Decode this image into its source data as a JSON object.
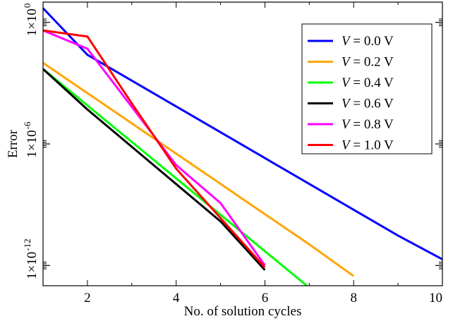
{
  "chart_data": {
    "type": "line",
    "title": "",
    "xlabel": "No. of solution cycles",
    "ylabel": "Error",
    "xlim": [
      1,
      10
    ],
    "ylim": [
      1e-13,
      10.0
    ],
    "yscale": "log",
    "grid": false,
    "legend_position": "top-right",
    "x_ticks": [
      {
        "value": 2,
        "label": "2"
      },
      {
        "value": 4,
        "label": "4"
      },
      {
        "value": 6,
        "label": "6"
      },
      {
        "value": 8,
        "label": "8"
      },
      {
        "value": 10,
        "label": "10"
      }
    ],
    "y_ticks": [
      {
        "value": 1.0,
        "base": "1×10",
        "exp": "0"
      },
      {
        "value": 1e-06,
        "base": "1×10",
        "exp": "-6"
      },
      {
        "value": 1e-12,
        "base": "1×10",
        "exp": "-12"
      }
    ],
    "series": [
      {
        "name": "V = 0.0 V",
        "var": "V",
        "rest": " = 0.0  V",
        "color": "#0000ff",
        "x": [
          1,
          2,
          9,
          10
        ],
        "y": [
          5,
          0.025,
          3e-11,
          2e-12
        ]
      },
      {
        "name": "V = 0.2 V",
        "var": "V",
        "rest": " = 0.2  V",
        "color": "#ffa500",
        "x": [
          1,
          7,
          8
        ],
        "y": [
          0.01,
          1.1e-11,
          3e-13
        ]
      },
      {
        "name": "V = 0.4 V",
        "var": "V",
        "rest": " = 0.4  V",
        "color": "#00ff00",
        "x": [
          1,
          7
        ],
        "y": [
          0.005,
          8e-14
        ]
      },
      {
        "name": "V = 0.6 V",
        "var": "V",
        "rest": " = 0.6  V",
        "color": "#000000",
        "x": [
          1,
          2,
          5,
          6
        ],
        "y": [
          0.005,
          5e-05,
          1.5e-10,
          6e-13
        ]
      },
      {
        "name": "V = 0.8 V",
        "var": "V",
        "rest": " = 0.8  V",
        "color": "#ff00ff",
        "x": [
          1,
          2,
          4,
          5,
          6
        ],
        "y": [
          0.4,
          0.05,
          9e-08,
          1.2e-09,
          1e-12
        ]
      },
      {
        "name": "V = 1.0 V",
        "var": "V",
        "rest": " = 1.0  V",
        "color": "#ff0000",
        "x": [
          1,
          2,
          3,
          4,
          6
        ],
        "y": [
          0.4,
          0.2,
          0.0001,
          6e-08,
          8e-13
        ]
      }
    ]
  }
}
